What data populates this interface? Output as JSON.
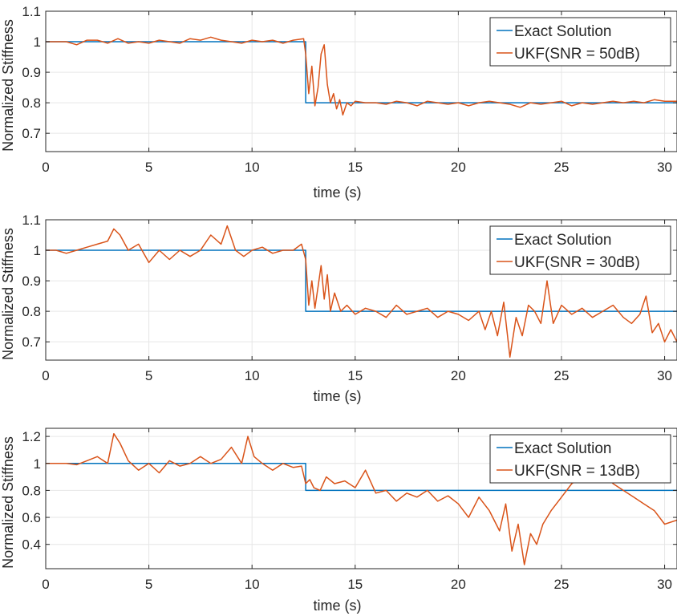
{
  "chart_data": [
    {
      "type": "line",
      "xlabel": "time (s)",
      "ylabel": "Normalized Stiffness",
      "xlim": [
        0,
        30.6
      ],
      "ylim": [
        0.64,
        1.1
      ],
      "xticks": [
        0,
        5,
        10,
        15,
        20,
        25,
        30
      ],
      "yticks": [
        0.7,
        0.8,
        0.9,
        1,
        1.1
      ],
      "ytick_labels": [
        "0.7",
        "0.8",
        "0.9",
        "1",
        "1.1"
      ],
      "grid": true,
      "legend_position": "top-right",
      "series": [
        {
          "name": "Exact Solution",
          "color": "#0072BD",
          "x": [
            0,
            12.6,
            12.6,
            30.6
          ],
          "y": [
            1,
            1,
            0.8,
            0.8
          ]
        },
        {
          "name": "UKF(SNR = 50dB)",
          "color": "#D95319",
          "x": [
            0,
            1,
            1.5,
            2,
            2.5,
            3,
            3.5,
            4,
            4.5,
            5,
            5.5,
            6,
            6.5,
            7,
            7.5,
            8,
            8.5,
            9,
            9.5,
            10,
            10.5,
            11,
            11.5,
            12,
            12.5,
            12.6,
            12.75,
            12.9,
            13.05,
            13.2,
            13.35,
            13.5,
            13.65,
            13.8,
            13.95,
            14.1,
            14.25,
            14.4,
            14.6,
            14.8,
            15,
            15.5,
            16,
            16.5,
            17,
            17.5,
            18,
            18.5,
            19,
            19.5,
            20,
            20.5,
            21,
            21.5,
            22,
            22.5,
            23,
            23.5,
            24,
            24.5,
            25,
            25.5,
            26,
            26.5,
            27,
            27.5,
            28,
            28.5,
            29,
            29.5,
            30,
            30.6
          ],
          "y": [
            1,
            1,
            0.99,
            1.005,
            1.005,
            0.995,
            1.01,
            0.995,
            1,
            0.995,
            1.005,
            1,
            0.995,
            1.01,
            1.005,
            1.015,
            1.005,
            1,
            0.995,
            1.005,
            1,
            1.005,
            0.995,
            1.005,
            1.01,
            0.96,
            0.83,
            0.92,
            0.79,
            0.85,
            0.96,
            0.99,
            0.86,
            0.8,
            0.83,
            0.78,
            0.81,
            0.76,
            0.8,
            0.79,
            0.805,
            0.8,
            0.8,
            0.795,
            0.805,
            0.8,
            0.79,
            0.805,
            0.8,
            0.795,
            0.8,
            0.79,
            0.8,
            0.805,
            0.8,
            0.795,
            0.785,
            0.8,
            0.795,
            0.8,
            0.805,
            0.79,
            0.8,
            0.795,
            0.8,
            0.805,
            0.8,
            0.805,
            0.8,
            0.81,
            0.805,
            0.805
          ]
        }
      ]
    },
    {
      "type": "line",
      "xlabel": "time (s)",
      "ylabel": "Normalized Stiffness",
      "xlim": [
        0,
        30.6
      ],
      "ylim": [
        0.64,
        1.1
      ],
      "xticks": [
        0,
        5,
        10,
        15,
        20,
        25,
        30
      ],
      "yticks": [
        0.7,
        0.8,
        0.9,
        1,
        1.1
      ],
      "ytick_labels": [
        "0.7",
        "0.8",
        "0.9",
        "1",
        "1.1"
      ],
      "grid": true,
      "legend_position": "top-right",
      "series": [
        {
          "name": "Exact Solution",
          "color": "#0072BD",
          "x": [
            0,
            12.6,
            12.6,
            30.6
          ],
          "y": [
            1,
            1,
            0.8,
            0.8
          ]
        },
        {
          "name": "UKF(SNR = 30dB)",
          "color": "#D95319",
          "x": [
            0,
            0.5,
            1,
            1.5,
            2,
            2.5,
            3,
            3.3,
            3.6,
            4,
            4.5,
            5,
            5.5,
            6,
            6.5,
            7,
            7.5,
            8,
            8.5,
            8.8,
            9.2,
            9.6,
            10,
            10.5,
            11,
            11.5,
            12,
            12.4,
            12.6,
            12.75,
            12.9,
            13.05,
            13.2,
            13.35,
            13.5,
            13.65,
            13.8,
            14,
            14.3,
            14.6,
            15,
            15.5,
            16,
            16.5,
            17,
            17.5,
            18,
            18.5,
            19,
            19.5,
            20,
            20.5,
            21,
            21.3,
            21.6,
            21.9,
            22.2,
            22.5,
            22.8,
            23.1,
            23.4,
            23.7,
            24,
            24.3,
            24.6,
            25,
            25.5,
            26,
            26.5,
            27,
            27.5,
            28,
            28.4,
            28.8,
            29.1,
            29.4,
            29.7,
            30,
            30.3,
            30.6
          ],
          "y": [
            1,
            1,
            0.99,
            1.0,
            1.01,
            1.02,
            1.03,
            1.07,
            1.05,
            1.0,
            1.02,
            0.96,
            1.0,
            0.97,
            1.0,
            0.98,
            1.0,
            1.05,
            1.02,
            1.08,
            1.0,
            0.98,
            1.0,
            1.01,
            0.99,
            1.0,
            1.0,
            1.02,
            0.97,
            0.82,
            0.9,
            0.81,
            0.88,
            0.95,
            0.84,
            0.92,
            0.8,
            0.86,
            0.8,
            0.82,
            0.79,
            0.81,
            0.8,
            0.78,
            0.82,
            0.79,
            0.8,
            0.81,
            0.78,
            0.8,
            0.79,
            0.77,
            0.8,
            0.74,
            0.8,
            0.72,
            0.83,
            0.65,
            0.78,
            0.72,
            0.82,
            0.8,
            0.76,
            0.9,
            0.76,
            0.82,
            0.79,
            0.81,
            0.78,
            0.8,
            0.82,
            0.78,
            0.76,
            0.79,
            0.85,
            0.73,
            0.76,
            0.7,
            0.74,
            0.7
          ]
        }
      ]
    },
    {
      "type": "line",
      "xlabel": "time (s)",
      "ylabel": "Normalized Stiffness",
      "xlim": [
        0,
        30.6
      ],
      "ylim": [
        0.22,
        1.26
      ],
      "xticks": [
        0,
        5,
        10,
        15,
        20,
        25,
        30
      ],
      "yticks": [
        0.4,
        0.6,
        0.8,
        1,
        1.2
      ],
      "ytick_labels": [
        "0.4",
        "0.6",
        "0.8",
        "1",
        "1.2"
      ],
      "grid": true,
      "legend_position": "top-right",
      "series": [
        {
          "name": "Exact Solution",
          "color": "#0072BD",
          "x": [
            0,
            12.6,
            12.6,
            30.6
          ],
          "y": [
            1,
            1,
            0.8,
            0.8
          ]
        },
        {
          "name": "UKF(SNR = 13dB)",
          "color": "#D95319",
          "x": [
            0,
            0.5,
            1,
            1.5,
            2,
            2.5,
            3,
            3.3,
            3.6,
            4,
            4.5,
            5,
            5.5,
            6,
            6.5,
            7,
            7.5,
            8,
            8.5,
            9,
            9.5,
            9.8,
            10.1,
            10.5,
            11,
            11.5,
            12,
            12.4,
            12.6,
            12.8,
            13,
            13.3,
            13.6,
            14,
            14.5,
            15,
            15.5,
            16,
            16.5,
            17,
            17.5,
            18,
            18.5,
            19,
            19.5,
            20,
            20.5,
            21,
            21.5,
            22,
            22.3,
            22.6,
            22.9,
            23.2,
            23.5,
            23.8,
            24.1,
            24.5,
            25,
            25.5,
            26,
            26.5,
            27,
            27.5,
            28,
            28.5,
            29,
            29.5,
            30,
            30.6
          ],
          "y": [
            1,
            1,
            1.0,
            0.99,
            1.02,
            1.05,
            1.0,
            1.22,
            1.15,
            1.02,
            0.95,
            1.0,
            0.93,
            1.02,
            0.98,
            1.0,
            1.05,
            1.0,
            1.03,
            1.12,
            1.0,
            1.2,
            1.05,
            1.0,
            0.95,
            1.0,
            0.97,
            0.98,
            0.85,
            0.88,
            0.82,
            0.8,
            0.9,
            0.85,
            0.87,
            0.82,
            0.95,
            0.78,
            0.8,
            0.72,
            0.78,
            0.75,
            0.8,
            0.72,
            0.76,
            0.7,
            0.6,
            0.75,
            0.65,
            0.5,
            0.7,
            0.35,
            0.55,
            0.25,
            0.48,
            0.4,
            0.55,
            0.65,
            0.75,
            0.85,
            0.9,
            0.88,
            0.92,
            0.85,
            0.8,
            0.75,
            0.7,
            0.65,
            0.55,
            0.58
          ]
        }
      ]
    }
  ]
}
